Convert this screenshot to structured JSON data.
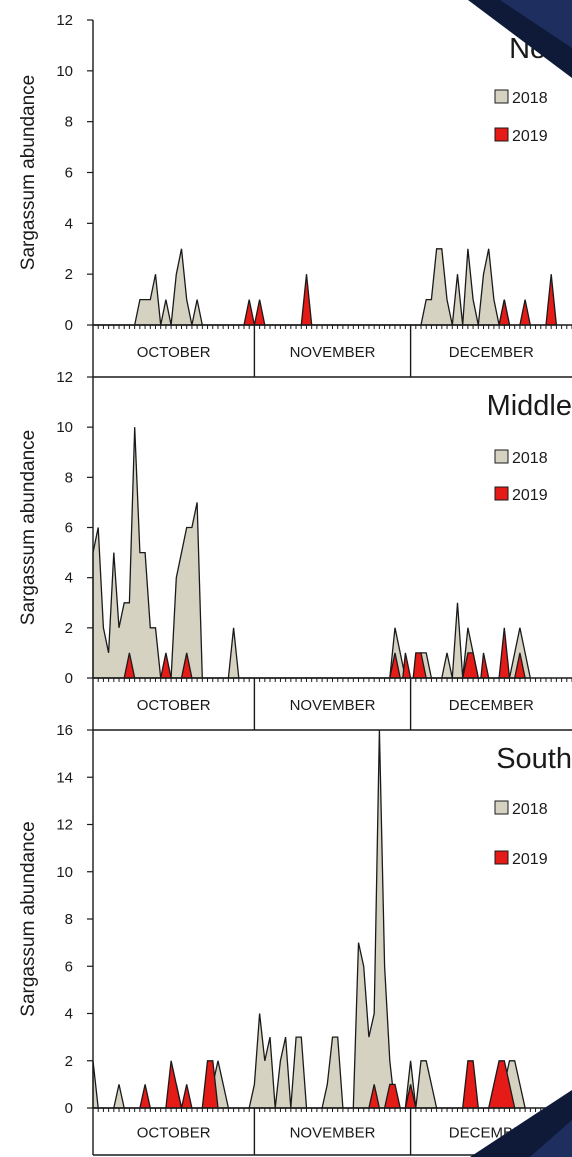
{
  "colors": {
    "series_2018": "#d6d2c2",
    "series_2019": "#e41b17",
    "stroke": "#1a1a1a",
    "corner_dark": "#0e1a38",
    "corner_blue": "#1e2f5f"
  },
  "chart_data": [
    {
      "type": "area",
      "title": "North",
      "ylabel": "Sargassum abundance",
      "ylim": [
        0,
        12
      ],
      "yticks": [
        0,
        2,
        4,
        6,
        8,
        10,
        12
      ],
      "x_range": [
        0,
        92
      ],
      "months": [
        {
          "label": "OCTOBER",
          "start": 0,
          "end": 31
        },
        {
          "label": "NOVEMBER",
          "start": 31,
          "end": 61
        },
        {
          "label": "DECEMBER",
          "start": 61,
          "end": 92
        }
      ],
      "series": [
        {
          "name": "2018",
          "points": [
            [
              0,
              0
            ],
            [
              8,
              0
            ],
            [
              9,
              1
            ],
            [
              11,
              1
            ],
            [
              12,
              2
            ],
            [
              13,
              0
            ],
            [
              14,
              1
            ],
            [
              15,
              0
            ],
            [
              16,
              2
            ],
            [
              17,
              3
            ],
            [
              18,
              1
            ],
            [
              19,
              0
            ],
            [
              20,
              1
            ],
            [
              21,
              0
            ],
            [
              63,
              0
            ],
            [
              64,
              1
            ],
            [
              65,
              1
            ],
            [
              66,
              3
            ],
            [
              67,
              3
            ],
            [
              68,
              1
            ],
            [
              69,
              0
            ],
            [
              70,
              2
            ],
            [
              71,
              0
            ],
            [
              72,
              3
            ],
            [
              73,
              1
            ],
            [
              74,
              0
            ],
            [
              75,
              2
            ],
            [
              76,
              3
            ],
            [
              77,
              1
            ],
            [
              78,
              0
            ],
            [
              79,
              1
            ],
            [
              80,
              0
            ]
          ]
        },
        {
          "name": "2019",
          "points": [
            [
              0,
              0
            ],
            [
              29,
              0
            ],
            [
              30,
              1
            ],
            [
              31,
              0
            ],
            [
              32,
              1
            ],
            [
              33,
              0
            ],
            [
              40,
              0
            ],
            [
              41,
              2
            ],
            [
              42,
              0
            ],
            [
              78,
              0
            ],
            [
              79,
              1
            ],
            [
              80,
              0
            ],
            [
              82,
              0
            ],
            [
              83,
              1
            ],
            [
              84,
              0
            ],
            [
              87,
              0
            ],
            [
              88,
              2
            ],
            [
              89,
              0
            ]
          ]
        }
      ]
    },
    {
      "type": "area",
      "title": "Middle",
      "ylabel": "Sargassum abundance",
      "ylim": [
        0,
        12
      ],
      "yticks": [
        0,
        2,
        4,
        6,
        8,
        10,
        12
      ],
      "x_range": [
        0,
        92
      ],
      "months": [
        {
          "label": "OCTOBER",
          "start": 0,
          "end": 31
        },
        {
          "label": "NOVEMBER",
          "start": 31,
          "end": 61
        },
        {
          "label": "DECEMBER",
          "start": 61,
          "end": 92
        }
      ],
      "series": [
        {
          "name": "2018",
          "points": [
            [
              0,
              5
            ],
            [
              1,
              6
            ],
            [
              2,
              2
            ],
            [
              3,
              1
            ],
            [
              4,
              5
            ],
            [
              5,
              2
            ],
            [
              6,
              3
            ],
            [
              7,
              3
            ],
            [
              8,
              10
            ],
            [
              9,
              5
            ],
            [
              10,
              5
            ],
            [
              11,
              2
            ],
            [
              12,
              2
            ],
            [
              13,
              0
            ],
            [
              15,
              0
            ],
            [
              16,
              4
            ],
            [
              17,
              5
            ],
            [
              18,
              6
            ],
            [
              19,
              6
            ],
            [
              20,
              7
            ],
            [
              21,
              0
            ],
            [
              26,
              0
            ],
            [
              27,
              2
            ],
            [
              28,
              0
            ],
            [
              57,
              0
            ],
            [
              58,
              2
            ],
            [
              59,
              1
            ],
            [
              60,
              0
            ],
            [
              62,
              0
            ],
            [
              63,
              1
            ],
            [
              64,
              1
            ],
            [
              65,
              0
            ],
            [
              67,
              0
            ],
            [
              68,
              1
            ],
            [
              69,
              0
            ],
            [
              70,
              3
            ],
            [
              71,
              0
            ],
            [
              72,
              2
            ],
            [
              73,
              1
            ],
            [
              74,
              0
            ],
            [
              80,
              0
            ],
            [
              81,
              1
            ],
            [
              82,
              2
            ],
            [
              83,
              1
            ],
            [
              84,
              0
            ]
          ]
        },
        {
          "name": "2019",
          "points": [
            [
              0,
              0
            ],
            [
              6,
              0
            ],
            [
              7,
              1
            ],
            [
              8,
              0
            ],
            [
              13,
              0
            ],
            [
              14,
              1
            ],
            [
              15,
              0
            ],
            [
              17,
              0
            ],
            [
              18,
              1
            ],
            [
              19,
              0
            ],
            [
              57,
              0
            ],
            [
              58,
              1
            ],
            [
              59,
              0
            ],
            [
              59.5,
              0
            ],
            [
              60,
              1
            ],
            [
              61,
              0
            ],
            [
              61.5,
              0
            ],
            [
              62,
              1
            ],
            [
              63,
              1
            ],
            [
              64,
              0
            ],
            [
              71,
              0
            ],
            [
              72,
              1
            ],
            [
              73,
              1
            ],
            [
              74,
              0
            ],
            [
              74.5,
              0
            ],
            [
              75,
              1
            ],
            [
              76,
              0
            ],
            [
              78,
              0
            ],
            [
              79,
              2
            ],
            [
              80,
              0
            ],
            [
              81,
              0
            ],
            [
              82,
              1
            ],
            [
              83,
              0
            ]
          ]
        }
      ]
    },
    {
      "type": "area",
      "title": "South",
      "ylabel": "Sargassum abundance",
      "ylim": [
        0,
        16
      ],
      "yticks": [
        0,
        2,
        4,
        6,
        8,
        10,
        12,
        14,
        16
      ],
      "x_range": [
        0,
        92
      ],
      "months": [
        {
          "label": "OCTOBER",
          "start": 0,
          "end": 31
        },
        {
          "label": "NOVEMBER",
          "start": 31,
          "end": 61
        },
        {
          "label": "DECEMBER",
          "start": 61,
          "end": 92
        }
      ],
      "series": [
        {
          "name": "2018",
          "points": [
            [
              0,
              2
            ],
            [
              1,
              0
            ],
            [
              4,
              0
            ],
            [
              5,
              1
            ],
            [
              6,
              0
            ],
            [
              15,
              0
            ],
            [
              16,
              1
            ],
            [
              17,
              0
            ],
            [
              21,
              0
            ],
            [
              22,
              1
            ],
            [
              23,
              1
            ],
            [
              24,
              2
            ],
            [
              25,
              1
            ],
            [
              26,
              0
            ],
            [
              30,
              0
            ],
            [
              31,
              1
            ],
            [
              32,
              4
            ],
            [
              33,
              2
            ],
            [
              34,
              3
            ],
            [
              35,
              0
            ],
            [
              36,
              2
            ],
            [
              37,
              3
            ],
            [
              38,
              0
            ],
            [
              39,
              3
            ],
            [
              40,
              3
            ],
            [
              41,
              0
            ],
            [
              44,
              0
            ],
            [
              45,
              1
            ],
            [
              46,
              3
            ],
            [
              47,
              3
            ],
            [
              48,
              0
            ],
            [
              50,
              0
            ],
            [
              51,
              7
            ],
            [
              52,
              6
            ],
            [
              53,
              3
            ],
            [
              54,
              4
            ],
            [
              55,
              16
            ],
            [
              56,
              6
            ],
            [
              57,
              2
            ],
            [
              58,
              0
            ],
            [
              60,
              0
            ],
            [
              61,
              2
            ],
            [
              62,
              0
            ],
            [
              63,
              2
            ],
            [
              64,
              2
            ],
            [
              65,
              1
            ],
            [
              66,
              0
            ],
            [
              78,
              0
            ],
            [
              79,
              1
            ],
            [
              80,
              2
            ],
            [
              81,
              2
            ],
            [
              82,
              1
            ],
            [
              83,
              0
            ]
          ]
        },
        {
          "name": "2019",
          "points": [
            [
              0,
              0
            ],
            [
              9,
              0
            ],
            [
              10,
              1
            ],
            [
              11,
              0
            ],
            [
              14,
              0
            ],
            [
              15,
              2
            ],
            [
              16,
              1
            ],
            [
              17,
              0
            ],
            [
              18,
              1
            ],
            [
              19,
              0
            ],
            [
              21,
              0
            ],
            [
              22,
              2
            ],
            [
              23,
              2
            ],
            [
              24,
              0
            ],
            [
              53,
              0
            ],
            [
              54,
              1
            ],
            [
              55,
              0
            ],
            [
              56,
              0
            ],
            [
              57,
              1
            ],
            [
              58,
              1
            ],
            [
              59,
              0
            ],
            [
              60,
              0
            ],
            [
              61,
              1
            ],
            [
              62,
              0
            ],
            [
              71,
              0
            ],
            [
              72,
              2
            ],
            [
              73,
              2
            ],
            [
              74,
              0
            ],
            [
              76,
              0
            ],
            [
              77,
              1
            ],
            [
              78,
              2
            ],
            [
              79,
              2
            ],
            [
              80,
              1
            ],
            [
              81,
              0
            ]
          ]
        }
      ]
    }
  ]
}
